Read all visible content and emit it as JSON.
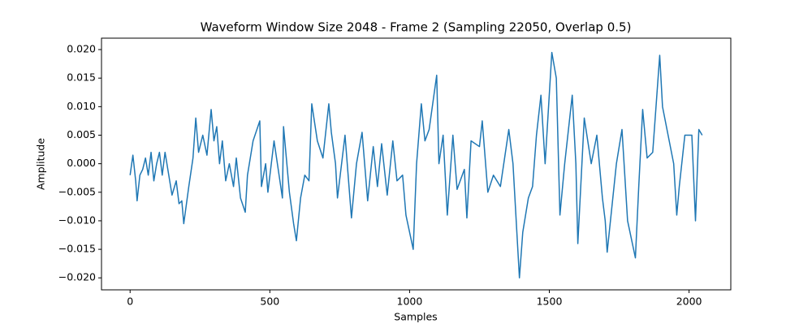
{
  "chart_data": {
    "type": "line",
    "title": "Waveform Window Size 2048 - Frame 2 (Sampling 22050, Overlap 0.5)",
    "x_label": "Samples",
    "y_label": "Amplitude",
    "xlim": [
      -102.35,
      2149.35
    ],
    "ylim": [
      -0.0221,
      0.022
    ],
    "xticks": [
      0,
      500,
      1000,
      1500,
      2000
    ],
    "yticks": [
      {
        "value": -0.02,
        "label": "−0.020"
      },
      {
        "value": -0.015,
        "label": "−0.015"
      },
      {
        "value": -0.01,
        "label": "−0.010"
      },
      {
        "value": -0.005,
        "label": "−0.005"
      },
      {
        "value": 0,
        "label": "0.000"
      },
      {
        "value": 0.005,
        "label": "0.005"
      },
      {
        "value": 0.01,
        "label": "0.010"
      },
      {
        "value": 0.015,
        "label": "0.015"
      },
      {
        "value": 0.02,
        "label": "0.020"
      }
    ],
    "series": [
      {
        "name": "Waveform",
        "color": "#1f77b4",
        "x": [
          0,
          10,
          20,
          25,
          35,
          45,
          55,
          65,
          75,
          85,
          95,
          105,
          115,
          125,
          135,
          150,
          165,
          175,
          185,
          192,
          210,
          225,
          235,
          245,
          260,
          275,
          290,
          300,
          310,
          320,
          330,
          342,
          355,
          370,
          380,
          395,
          412,
          420,
          440,
          464,
          470,
          485,
          493,
          515,
          530,
          545,
          549,
          570,
          585,
          595,
          610,
          625,
          640,
          650,
          670,
          690,
          711,
          720,
          735,
          742,
          769,
          792,
          810,
          830,
          850,
          870,
          885,
          900,
          920,
          940,
          955,
          975,
          987,
          1013,
          1025,
          1042,
          1055,
          1070,
          1097,
          1105,
          1120,
          1135,
          1155,
          1170,
          1196,
          1205,
          1220,
          1250,
          1260,
          1280,
          1300,
          1325,
          1355,
          1370,
          1393,
          1405,
          1425,
          1440,
          1454,
          1470,
          1485,
          1509,
          1525,
          1538,
          1555,
          1582,
          1595,
          1602,
          1625,
          1650,
          1670,
          1690,
          1700,
          1707,
          1740,
          1760,
          1780,
          1808,
          1820,
          1834,
          1850,
          1870,
          1895,
          1905,
          1925,
          1945,
          1956,
          1965,
          1985,
          2010,
          2023,
          2035,
          2047
        ],
        "values": [
          -0.002,
          0.0015,
          -0.003,
          -0.0065,
          -0.002,
          -0.001,
          0.001,
          -0.002,
          0.002,
          -0.003,
          0.0,
          0.002,
          -0.002,
          0.002,
          -0.001,
          -0.0055,
          -0.003,
          -0.007,
          -0.0065,
          -0.0105,
          -0.004,
          0.001,
          0.008,
          0.002,
          0.005,
          0.0015,
          0.0095,
          0.004,
          0.0065,
          0.0,
          0.004,
          -0.003,
          0.0,
          -0.004,
          0.001,
          -0.006,
          -0.0085,
          -0.002,
          0.004,
          0.0075,
          -0.004,
          0.0,
          -0.005,
          0.004,
          -0.001,
          -0.006,
          0.0065,
          -0.005,
          -0.0105,
          -0.0135,
          -0.006,
          -0.002,
          -0.003,
          0.0105,
          0.004,
          0.001,
          0.0105,
          0.0055,
          0.0,
          -0.006,
          0.005,
          -0.0095,
          0.0,
          0.0055,
          -0.0065,
          0.003,
          -0.004,
          0.0035,
          -0.0055,
          0.004,
          -0.003,
          -0.002,
          -0.009,
          -0.015,
          0.0,
          0.0105,
          0.004,
          0.006,
          0.0155,
          0.0,
          0.005,
          -0.009,
          0.005,
          -0.0045,
          -0.001,
          -0.0095,
          0.004,
          0.003,
          0.0075,
          -0.005,
          -0.002,
          -0.004,
          0.006,
          0.0,
          -0.02,
          -0.012,
          -0.006,
          -0.004,
          0.005,
          0.012,
          0.0,
          0.0195,
          0.015,
          -0.009,
          0.0,
          0.012,
          0.0,
          -0.014,
          0.008,
          0.0,
          0.005,
          -0.006,
          -0.01,
          -0.0155,
          0.0,
          0.006,
          -0.01,
          -0.0165,
          -0.004,
          0.0095,
          0.001,
          0.002,
          0.019,
          0.01,
          0.005,
          0.0,
          -0.009,
          -0.004,
          0.005,
          0.005,
          -0.01,
          0.006,
          0.005
        ]
      }
    ]
  }
}
